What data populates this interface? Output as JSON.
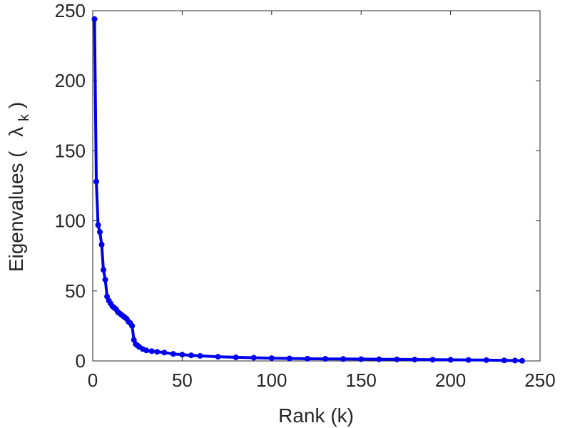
{
  "chart_data": {
    "type": "line",
    "title": "",
    "xlabel": "Rank (k)",
    "ylabel": {
      "prefix": "Eigenvalues (",
      "symbol": "λ",
      "subscript": "k",
      "suffix": ")"
    },
    "xlim": [
      0,
      250
    ],
    "ylim": [
      0,
      250
    ],
    "xticks": [
      0,
      50,
      100,
      150,
      200,
      250
    ],
    "yticks": [
      0,
      50,
      100,
      150,
      200,
      250
    ],
    "grid": false,
    "legend": "none",
    "series": [
      {
        "color": "#0000ee",
        "marker": "circle",
        "x": [
          1,
          2,
          3,
          4,
          5,
          6,
          7,
          8,
          9,
          10,
          11,
          12,
          13,
          14,
          15,
          16,
          17,
          18,
          19,
          20,
          21,
          22,
          23,
          24,
          25,
          26,
          28,
          30,
          33,
          36,
          40,
          45,
          50,
          55,
          60,
          70,
          80,
          90,
          100,
          110,
          120,
          130,
          140,
          150,
          160,
          170,
          180,
          190,
          200,
          210,
          220,
          230,
          236,
          240
        ],
        "y": [
          244,
          128,
          97,
          92,
          83,
          65,
          58,
          46,
          43,
          41,
          39,
          38,
          37,
          35,
          34,
          33,
          32,
          31,
          30,
          28,
          27,
          25,
          15,
          12,
          11,
          10,
          8.5,
          7.5,
          7,
          6.5,
          6,
          5,
          4.5,
          4,
          3.6,
          3,
          2.6,
          2.3,
          2,
          1.8,
          1.6,
          1.5,
          1.4,
          1.3,
          1.2,
          1.1,
          1,
          0.9,
          0.8,
          0.7,
          0.6,
          0.4,
          0.3,
          0.1
        ]
      }
    ]
  }
}
